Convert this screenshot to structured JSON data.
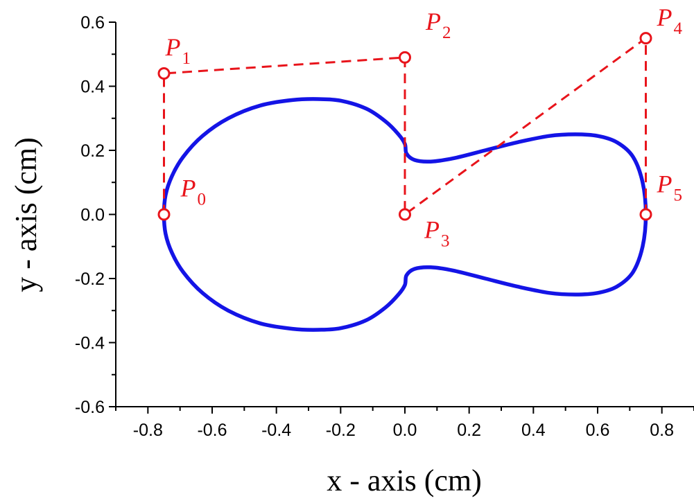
{
  "chart_data": {
    "type": "line",
    "xlabel": "x - axis (cm)",
    "ylabel": "y - axis (cm)",
    "xlim": [
      -0.9,
      0.9
    ],
    "ylim": [
      -0.6,
      0.6
    ],
    "xticks": [
      -0.8,
      -0.6,
      -0.4,
      -0.2,
      0.0,
      0.2,
      0.4,
      0.6,
      0.8
    ],
    "yticks": [
      -0.6,
      -0.4,
      -0.2,
      0.0,
      0.2,
      0.4,
      0.6
    ],
    "xtick_labels": [
      "-0.8",
      "-0.6",
      "-0.4",
      "-0.2",
      "0.0",
      "0.2",
      "0.4",
      "0.6",
      "0.8"
    ],
    "ytick_labels": [
      "-0.6",
      "-0.4",
      "-0.2",
      "0.0",
      "0.2",
      "0.4",
      "0.6"
    ],
    "grid": false,
    "series": [
      {
        "style": "solid",
        "color": "#1414e6",
        "x": [
          -0.75,
          -0.745,
          -0.725,
          -0.69,
          -0.63,
          -0.55,
          -0.45,
          -0.35,
          -0.27,
          -0.2,
          -0.12,
          -0.06,
          -0.02,
          0.0,
          0.005,
          0.03,
          0.08,
          0.15,
          0.25,
          0.35,
          0.45,
          0.53,
          0.6,
          0.66,
          0.71,
          0.74,
          0.75,
          0.74,
          0.71,
          0.66,
          0.6,
          0.53,
          0.45,
          0.35,
          0.25,
          0.15,
          0.08,
          0.03,
          0.005,
          0.0,
          -0.02,
          -0.06,
          -0.12,
          -0.2,
          -0.27,
          -0.35,
          -0.45,
          -0.55,
          -0.63,
          -0.69,
          -0.725,
          -0.745,
          -0.75
        ],
        "y": [
          0.0,
          0.06,
          0.12,
          0.18,
          0.245,
          0.3,
          0.34,
          0.357,
          0.36,
          0.355,
          0.33,
          0.29,
          0.25,
          0.22,
          0.19,
          0.17,
          0.165,
          0.175,
          0.2,
          0.225,
          0.245,
          0.25,
          0.245,
          0.225,
          0.18,
          0.1,
          0.0,
          -0.1,
          -0.18,
          -0.225,
          -0.245,
          -0.25,
          -0.245,
          -0.225,
          -0.2,
          -0.175,
          -0.165,
          -0.17,
          -0.19,
          -0.22,
          -0.25,
          -0.29,
          -0.33,
          -0.355,
          -0.36,
          -0.357,
          -0.34,
          -0.3,
          -0.245,
          -0.18,
          -0.12,
          -0.06,
          0.0
        ]
      },
      {
        "style": "dashed",
        "color": "#e8141b",
        "markers": "open-circle",
        "x": [
          -0.75,
          -0.75,
          0.0,
          0.0,
          0.75,
          0.75
        ],
        "y": [
          0.0,
          0.44,
          0.49,
          0.0,
          0.55,
          0.0
        ],
        "point_labels": [
          {
            "letter": "P",
            "sub": "0"
          },
          {
            "letter": "P",
            "sub": "1"
          },
          {
            "letter": "P",
            "sub": "2"
          },
          {
            "letter": "P",
            "sub": "3"
          },
          {
            "letter": "P",
            "sub": "4"
          },
          {
            "letter": "P",
            "sub": "5"
          }
        ]
      }
    ]
  }
}
